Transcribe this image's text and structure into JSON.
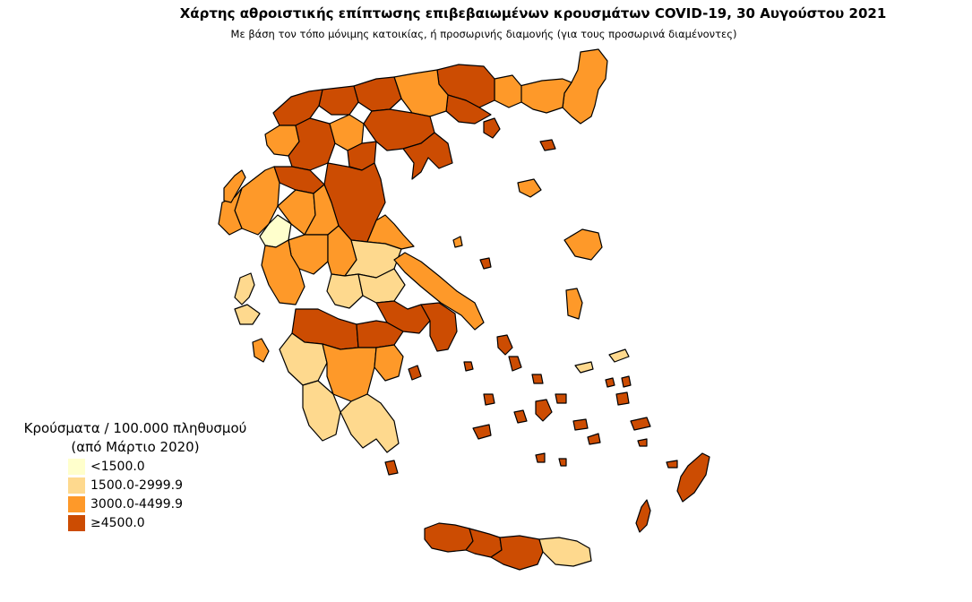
{
  "title": "Χάρτης αθροιστικής επίπτωσης επιβεβαιωμένων κρουσμάτων COVID-19, 30 Αυγούστου 2021",
  "subtitle": "Με βάση τον τόπο μόνιμης κατοικίας, ή προσωρινής διαμονής (για τους προσωρινά διαμένοντες)",
  "legend": {
    "title_line1": "Κρούσματα / 100.000 πληθυσμού",
    "title_line2": "(από Μάρτιο 2020)",
    "items": [
      {
        "label": "<1500.0",
        "color": "#FFFFCC"
      },
      {
        "label": "1500.0-2999.9",
        "color": "#FED98E"
      },
      {
        "label": "3000.0-4499.9",
        "color": "#FE9929"
      },
      {
        "label": "≥4500.0",
        "color": "#CC4C02"
      }
    ]
  },
  "colors": {
    "c1": "#FFFFCC",
    "c2": "#FED98E",
    "c3": "#FE9929",
    "c4": "#CC4C02"
  }
}
